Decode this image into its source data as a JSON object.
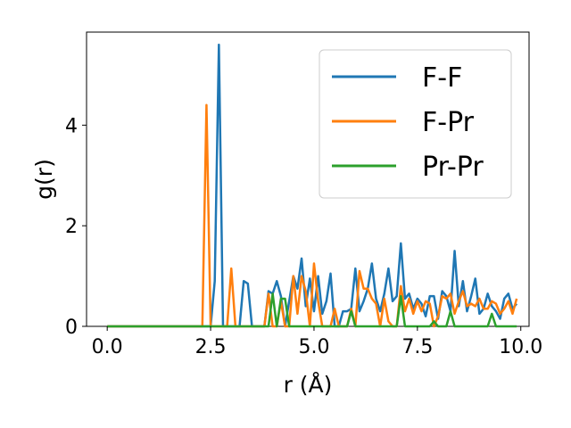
{
  "chart_data": {
    "type": "line",
    "title": "",
    "xlabel": "r (Å)",
    "ylabel": "g(r)",
    "xlim": [
      -0.5,
      10.2
    ],
    "ylim": [
      0,
      5.85
    ],
    "x_ticks": [
      0.0,
      2.5,
      5.0,
      7.5,
      10.0
    ],
    "x_tick_labels": [
      "0.0",
      "2.5",
      "5.0",
      "7.5",
      "10.0"
    ],
    "y_ticks": [
      0,
      2,
      4
    ],
    "y_tick_labels": [
      "0",
      "2",
      "4"
    ],
    "grid": false,
    "legend_position": "top-right",
    "x": [
      0.0,
      0.1,
      0.2,
      0.3,
      0.4,
      0.5,
      0.6,
      0.7,
      0.8,
      0.9,
      1.0,
      1.1,
      1.2,
      1.3,
      1.4,
      1.5,
      1.6,
      1.7,
      1.8,
      1.9,
      2.0,
      2.1,
      2.2,
      2.3,
      2.4,
      2.5,
      2.6,
      2.7,
      2.8,
      2.9,
      3.0,
      3.1,
      3.2,
      3.3,
      3.4,
      3.5,
      3.6,
      3.7,
      3.8,
      3.9,
      4.0,
      4.1,
      4.2,
      4.3,
      4.4,
      4.5,
      4.6,
      4.7,
      4.8,
      4.9,
      5.0,
      5.1,
      5.2,
      5.3,
      5.4,
      5.5,
      5.6,
      5.7,
      5.8,
      5.9,
      6.0,
      6.1,
      6.2,
      6.3,
      6.4,
      6.5,
      6.6,
      6.7,
      6.8,
      6.9,
      7.0,
      7.1,
      7.2,
      7.3,
      7.4,
      7.5,
      7.6,
      7.7,
      7.8,
      7.9,
      8.0,
      8.1,
      8.2,
      8.3,
      8.4,
      8.5,
      8.6,
      8.7,
      8.8,
      8.9,
      9.0,
      9.1,
      9.2,
      9.3,
      9.4,
      9.5,
      9.6,
      9.7,
      9.8,
      9.9
    ],
    "series": [
      {
        "name": "F-F",
        "color": "#1f77b4",
        "values": [
          0,
          0,
          0,
          0,
          0,
          0,
          0,
          0,
          0,
          0,
          0,
          0,
          0,
          0,
          0,
          0,
          0,
          0,
          0,
          0,
          0,
          0,
          0,
          0,
          0,
          0,
          0.9,
          5.6,
          0,
          0,
          0,
          0,
          0,
          0.9,
          0.85,
          0,
          0,
          0,
          0,
          0.7,
          0.65,
          0.9,
          0.6,
          0,
          0.5,
          1.0,
          0.75,
          1.35,
          0.4,
          0.95,
          0.3,
          1.0,
          0.25,
          0.5,
          1.05,
          0,
          0,
          0.3,
          0.3,
          0.35,
          1.15,
          0.3,
          0.5,
          0.75,
          1.25,
          0.55,
          0.3,
          0.65,
          1.15,
          0.5,
          0.6,
          1.65,
          0.55,
          0.65,
          0.35,
          0.55,
          0.45,
          0.2,
          0.6,
          0.6,
          0.15,
          0.7,
          0.6,
          0.3,
          1.5,
          0.4,
          0.9,
          0.3,
          0.6,
          0.95,
          0.25,
          0.35,
          0.65,
          0.4,
          0.3,
          0.15,
          0.55,
          0.65,
          0.35,
          0.45
        ]
      },
      {
        "name": "F-Pr",
        "color": "#ff7f0e",
        "values": [
          0,
          0,
          0,
          0,
          0,
          0,
          0,
          0,
          0,
          0,
          0,
          0,
          0,
          0,
          0,
          0,
          0,
          0,
          0,
          0,
          0,
          0,
          0,
          0,
          4.4,
          0,
          0,
          0,
          0,
          0,
          1.15,
          0,
          0,
          0,
          0,
          0,
          0,
          0,
          0,
          0.65,
          0,
          0,
          0.5,
          0,
          0,
          1.0,
          0.25,
          1.0,
          0.7,
          0,
          1.25,
          0.5,
          0,
          0,
          0,
          0.35,
          0,
          0,
          0,
          0.35,
          0,
          1.1,
          0.75,
          0.75,
          0.55,
          0.45,
          0,
          0.55,
          0.1,
          0,
          0,
          0.8,
          0.3,
          0.55,
          0.25,
          0.5,
          0.3,
          0.5,
          0.45,
          0,
          0.2,
          0.6,
          0.55,
          0.65,
          0.25,
          0.5,
          0.7,
          0.4,
          0.45,
          0.4,
          0.55,
          0.35,
          0.35,
          0.5,
          0.45,
          0.25,
          0.35,
          0.5,
          0.25,
          0.55
        ]
      },
      {
        "name": "Pr-Pr",
        "color": "#2ca02c",
        "values": [
          0,
          0,
          0,
          0,
          0,
          0,
          0,
          0,
          0,
          0,
          0,
          0,
          0,
          0,
          0,
          0,
          0,
          0,
          0,
          0,
          0,
          0,
          0,
          0,
          0,
          0,
          0,
          0,
          0,
          0,
          0,
          0,
          0,
          0,
          0,
          0,
          0,
          0,
          0,
          0,
          0.65,
          0,
          0.55,
          0.55,
          0,
          0,
          0,
          0,
          0,
          0,
          0,
          0,
          0,
          0,
          0,
          0,
          0,
          0,
          0,
          0.3,
          0,
          0,
          0,
          0,
          0,
          0,
          0,
          0,
          0,
          0,
          0,
          0.6,
          0,
          0,
          0,
          0,
          0,
          0,
          0,
          0.1,
          0,
          0,
          0,
          0.3,
          0,
          0,
          0,
          0,
          0,
          0,
          0,
          0,
          0,
          0.25,
          0,
          0,
          0,
          0,
          0,
          0
        ]
      }
    ]
  }
}
